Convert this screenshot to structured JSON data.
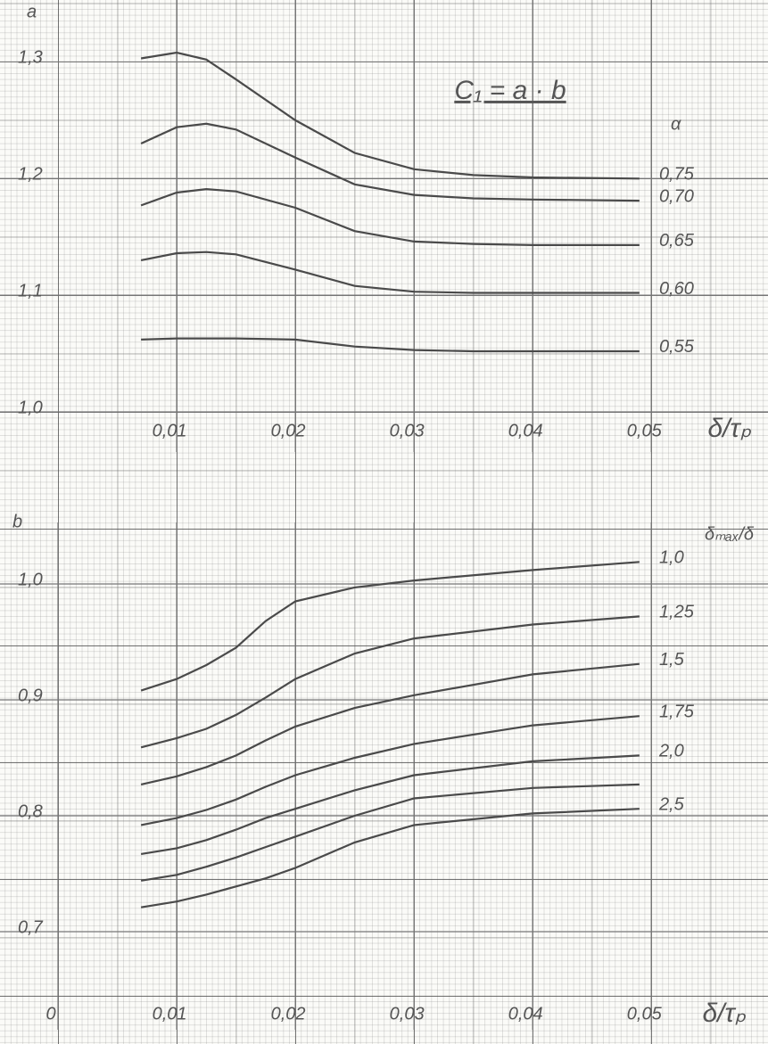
{
  "chart_data": [
    {
      "type": "line",
      "y_label": "a",
      "x_label": "δ/τₚ",
      "annotation": "C₁ = a · b",
      "legend_title": "α",
      "x": [
        0.007,
        0.01,
        0.0125,
        0.015,
        0.02,
        0.025,
        0.03,
        0.035,
        0.04,
        0.049
      ],
      "xlim": [
        0,
        0.059
      ],
      "ylim": [
        1.0,
        1.35
      ],
      "grid": true,
      "xticks": [
        {
          "value": 0.01,
          "label": "0,01"
        },
        {
          "value": 0.02,
          "label": "0,02"
        },
        {
          "value": 0.03,
          "label": "0,03"
        },
        {
          "value": 0.04,
          "label": "0,04"
        },
        {
          "value": 0.05,
          "label": "0,05"
        }
      ],
      "yticks": [
        {
          "value": 1.0,
          "label": "1,0"
        },
        {
          "value": 1.1,
          "label": "1,1"
        },
        {
          "value": 1.2,
          "label": "1,2"
        },
        {
          "value": 1.3,
          "label": "1,3"
        }
      ],
      "series": [
        {
          "name": "0,75",
          "color": "#4a4a4a",
          "values": [
            1.303,
            1.308,
            1.302,
            1.285,
            1.25,
            1.222,
            1.208,
            1.203,
            1.201,
            1.2
          ]
        },
        {
          "name": "0,70",
          "color": "#4a4a4a",
          "values": [
            1.23,
            1.244,
            1.247,
            1.242,
            1.218,
            1.195,
            1.186,
            1.183,
            1.182,
            1.181
          ]
        },
        {
          "name": "0,65",
          "color": "#4a4a4a",
          "values": [
            1.177,
            1.188,
            1.191,
            1.189,
            1.175,
            1.155,
            1.146,
            1.144,
            1.143,
            1.143
          ]
        },
        {
          "name": "0,60",
          "color": "#4a4a4a",
          "values": [
            1.13,
            1.136,
            1.137,
            1.135,
            1.122,
            1.108,
            1.103,
            1.102,
            1.102,
            1.102
          ]
        },
        {
          "name": "0,55",
          "color": "#4a4a4a",
          "values": [
            1.062,
            1.063,
            1.063,
            1.063,
            1.062,
            1.056,
            1.053,
            1.052,
            1.052,
            1.052
          ]
        }
      ]
    },
    {
      "type": "line",
      "y_label": "b",
      "x_label": "δ/τₚ",
      "legend_title": "δₘₐₓ/δ",
      "x": [
        0.007,
        0.01,
        0.0125,
        0.015,
        0.0175,
        0.02,
        0.025,
        0.03,
        0.04,
        0.049
      ],
      "xlim": [
        0,
        0.059
      ],
      "ylim": [
        0.65,
        1.05
      ],
      "grid": true,
      "xticks": [
        0,
        {
          "value": 0.01,
          "label": "0,01"
        },
        {
          "value": 0.02,
          "label": "0,02"
        },
        {
          "value": 0.03,
          "label": "0,03"
        },
        {
          "value": 0.04,
          "label": "0,04"
        },
        {
          "value": 0.05,
          "label": "0,05"
        }
      ],
      "yticks": [
        {
          "value": 0.7,
          "label": "0,7"
        },
        {
          "value": 0.8,
          "label": "0,8"
        },
        {
          "value": 0.9,
          "label": "0,9"
        },
        {
          "value": 1.0,
          "label": "1,0"
        }
      ],
      "series": [
        {
          "name": "1,0",
          "color": "#4a4a4a",
          "values": [
            0.908,
            0.918,
            0.93,
            0.945,
            0.968,
            0.985,
            0.997,
            1.003,
            1.012,
            1.019
          ]
        },
        {
          "name": "1,25",
          "color": "#4a4a4a",
          "values": [
            0.859,
            0.867,
            0.875,
            0.887,
            0.902,
            0.918,
            0.94,
            0.953,
            0.965,
            0.972
          ]
        },
        {
          "name": "1,5",
          "color": "#4a4a4a",
          "values": [
            0.827,
            0.834,
            0.842,
            0.852,
            0.865,
            0.877,
            0.893,
            0.904,
            0.922,
            0.931
          ]
        },
        {
          "name": "1,75",
          "color": "#4a4a4a",
          "values": [
            0.792,
            0.798,
            0.805,
            0.814,
            0.825,
            0.835,
            0.85,
            0.862,
            0.878,
            0.886
          ]
        },
        {
          "name": "2,0",
          "color": "#4a4a4a",
          "values": [
            0.767,
            0.772,
            0.779,
            0.788,
            0.798,
            0.806,
            0.822,
            0.835,
            0.847,
            0.852
          ]
        },
        {
          "color": "#4a4a4a",
          "values": [
            0.744,
            0.749,
            0.756,
            0.764,
            0.773,
            0.782,
            0.8,
            0.815,
            0.824,
            0.827
          ]
        },
        {
          "name": "2,5",
          "color": "#4a4a4a",
          "values": [
            0.721,
            0.726,
            0.732,
            0.739,
            0.746,
            0.755,
            0.777,
            0.792,
            0.802,
            0.806
          ]
        }
      ]
    }
  ]
}
